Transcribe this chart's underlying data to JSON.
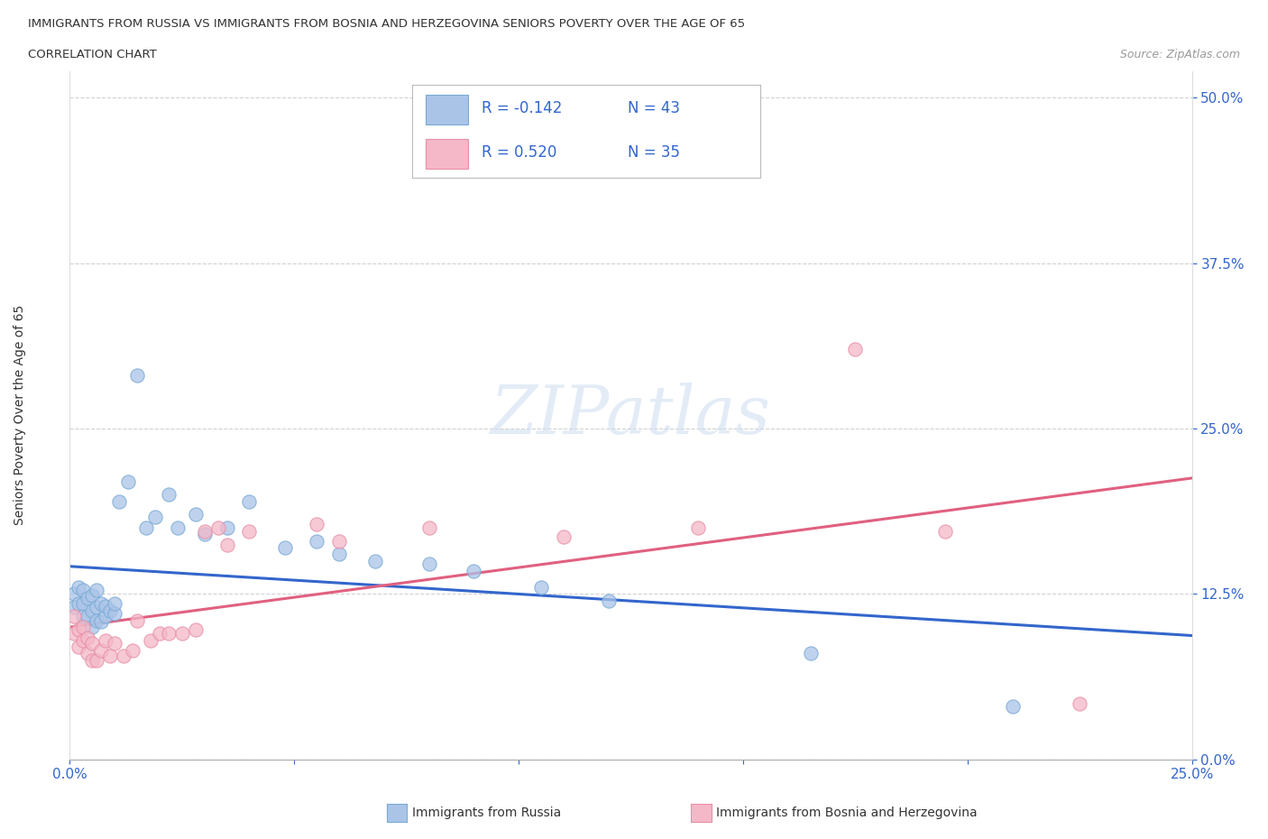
{
  "title_line1": "IMMIGRANTS FROM RUSSIA VS IMMIGRANTS FROM BOSNIA AND HERZEGOVINA SENIORS POVERTY OVER THE AGE OF 65",
  "title_line2": "CORRELATION CHART",
  "source_text": "Source: ZipAtlas.com",
  "ylabel": "Seniors Poverty Over the Age of 65",
  "xlim": [
    0.0,
    0.25
  ],
  "ylim": [
    0.0,
    0.52
  ],
  "ytick_vals": [
    0.0,
    0.125,
    0.25,
    0.375,
    0.5
  ],
  "ytick_labels": [
    "0.0%",
    "12.5%",
    "25.0%",
    "37.5%",
    "50.0%"
  ],
  "xtick_positions": [
    0.0,
    0.05,
    0.1,
    0.15,
    0.2,
    0.25
  ],
  "xtick_labels": [
    "0.0%",
    "",
    "",
    "",
    "",
    "25.0%"
  ],
  "legend_labels": [
    "Immigrants from Russia",
    "Immigrants from Bosnia and Herzegovina"
  ],
  "R_russia": -0.142,
  "N_russia": 43,
  "R_bosnia": 0.52,
  "N_bosnia": 35,
  "color_russia_fill": "#aac4e8",
  "color_russia_edge": "#7aaad4",
  "color_bosnia_fill": "#f4b8c8",
  "color_bosnia_edge": "#e890a8",
  "color_russia_line": "#3366cc",
  "color_bosnia_line": "#e06080",
  "color_legend_text": "#3366cc",
  "color_tick_labels": "#3366cc",
  "watermark": "ZIPatlas",
  "russia_x": [
    0.001,
    0.001,
    0.002,
    0.002,
    0.003,
    0.003,
    0.003,
    0.004,
    0.004,
    0.005,
    0.005,
    0.005,
    0.006,
    0.006,
    0.006,
    0.007,
    0.007,
    0.008,
    0.008,
    0.009,
    0.01,
    0.01,
    0.011,
    0.013,
    0.015,
    0.017,
    0.019,
    0.022,
    0.024,
    0.028,
    0.03,
    0.035,
    0.04,
    0.048,
    0.055,
    0.06,
    0.068,
    0.08,
    0.09,
    0.105,
    0.12,
    0.165,
    0.21
  ],
  "russia_y": [
    0.115,
    0.125,
    0.118,
    0.13,
    0.108,
    0.118,
    0.128,
    0.108,
    0.122,
    0.1,
    0.112,
    0.124,
    0.105,
    0.115,
    0.128,
    0.104,
    0.118,
    0.108,
    0.116,
    0.112,
    0.11,
    0.118,
    0.195,
    0.21,
    0.29,
    0.175,
    0.183,
    0.2,
    0.175,
    0.185,
    0.17,
    0.175,
    0.195,
    0.16,
    0.165,
    0.155,
    0.15,
    0.148,
    0.142,
    0.13,
    0.12,
    0.08,
    0.04
  ],
  "bosnia_x": [
    0.001,
    0.001,
    0.002,
    0.002,
    0.003,
    0.003,
    0.004,
    0.004,
    0.005,
    0.005,
    0.006,
    0.007,
    0.008,
    0.009,
    0.01,
    0.012,
    0.014,
    0.015,
    0.018,
    0.02,
    0.022,
    0.025,
    0.028,
    0.03,
    0.033,
    0.035,
    0.04,
    0.055,
    0.06,
    0.08,
    0.11,
    0.14,
    0.175,
    0.195,
    0.225
  ],
  "bosnia_y": [
    0.108,
    0.095,
    0.085,
    0.098,
    0.09,
    0.1,
    0.08,
    0.092,
    0.075,
    0.088,
    0.075,
    0.082,
    0.09,
    0.078,
    0.088,
    0.078,
    0.082,
    0.105,
    0.09,
    0.095,
    0.095,
    0.095,
    0.098,
    0.172,
    0.175,
    0.162,
    0.172,
    0.178,
    0.165,
    0.175,
    0.168,
    0.175,
    0.31,
    0.172,
    0.042
  ]
}
